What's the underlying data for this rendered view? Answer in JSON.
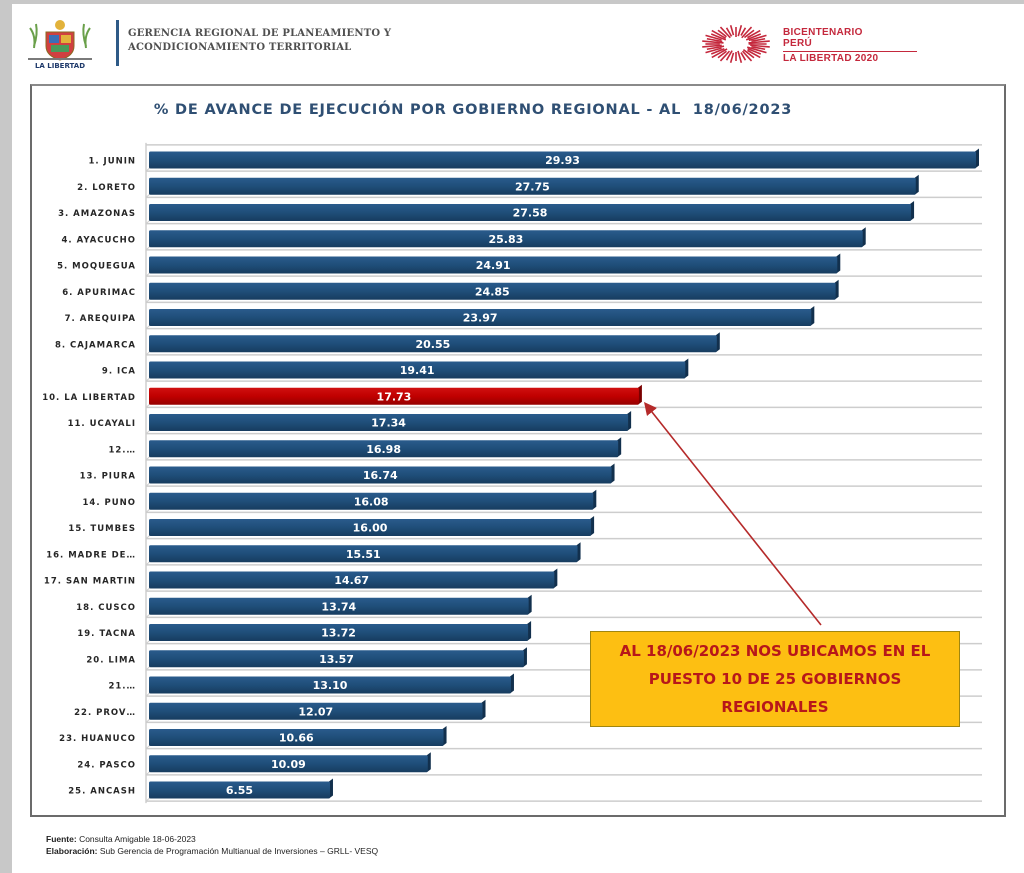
{
  "header": {
    "org_title_line1": "GERENCIA REGIONAL DE PLANEAMIENTO Y",
    "org_title_line2": "ACONDICIONAMIENTO TERRITORIAL",
    "left_logo_caption": "LA LIBERTAD",
    "right_logo_line1": "BICENTENARIO",
    "right_logo_line2": "PERÚ",
    "right_logo_line3": "LA LIBERTAD 2020"
  },
  "colors": {
    "bar_default": "#1f4e79",
    "bar_highlight": "#c00000",
    "callout_bg": "#fdbf12",
    "callout_text": "#b7171a",
    "title": "#2f4f73",
    "arrow": "#b52a2a"
  },
  "chart_data": {
    "type": "bar",
    "orientation": "horizontal",
    "title": "% DE AVANCE DE EJECUCIÓN POR GOBIERNO REGIONAL - AL  18/06/2023",
    "xlabel": "",
    "ylabel": "",
    "xlim": [
      0,
      30
    ],
    "grid": true,
    "highlight_index": 9,
    "categories": [
      "1. JUNIN",
      "2. LORETO",
      "3. AMAZONAS",
      "4. AYACUCHO",
      "5. MOQUEGUA",
      "6. APURIMAC",
      "7. AREQUIPA",
      "8. CAJAMARCA",
      "9. ICA",
      "10. LA LIBERTAD",
      "11. UCAYALI",
      "12.…",
      "13. PIURA",
      "14. PUNO",
      "15. TUMBES",
      "16. MADRE DE…",
      "17. SAN MARTIN",
      "18. CUSCO",
      "19. TACNA",
      "20. LIMA",
      "21.…",
      "22. PROV…",
      "23. HUANUCO",
      "24. PASCO",
      "25. ANCASH"
    ],
    "values": [
      29.93,
      27.75,
      27.58,
      25.83,
      24.91,
      24.85,
      23.97,
      20.55,
      19.41,
      17.73,
      17.34,
      16.98,
      16.74,
      16.08,
      16.0,
      15.51,
      14.67,
      13.74,
      13.72,
      13.57,
      13.1,
      12.07,
      10.66,
      10.09,
      6.55
    ],
    "value_labels": [
      "29.93",
      "27.75",
      "27.58",
      "25.83",
      "24.91",
      "24.85",
      "23.97",
      "20.55",
      "19.41",
      "17.73",
      "17.34",
      "16.98",
      "16.74",
      "16.08",
      "16.00",
      "15.51",
      "14.67",
      "13.74",
      "13.72",
      "13.57",
      "13.10",
      "12.07",
      "10.66",
      "10.09",
      "6.55"
    ],
    "annotation": "AL 18/06/2023 NOS UBICAMOS EN EL PUESTO 10 DE 25 GOBIERNOS REGIONALES"
  },
  "callout": {
    "line1": "AL 18/06/2023 NOS UBICAMOS EN EL",
    "line2": "PUESTO 10 DE 25 GOBIERNOS",
    "line3": "REGIONALES"
  },
  "footer": {
    "source_label": "Fuente:",
    "source_text": " Consulta Amigable 18-06-2023",
    "made_label": "Elaboración:",
    "made_text": " Sub Gerencia de Programación Multianual de Inversiones – GRLL- VESQ"
  }
}
